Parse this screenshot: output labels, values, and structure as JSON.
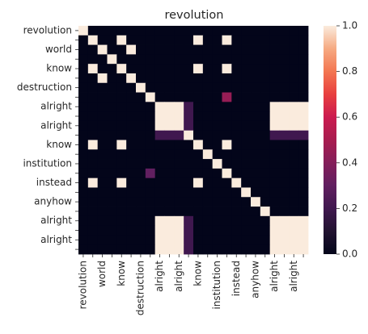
{
  "chart_data": {
    "type": "heatmap",
    "title": "revolution",
    "xlabel": "",
    "ylabel": "",
    "x_tick_labels": [
      "revolution",
      "",
      "world",
      "",
      "know",
      "",
      "destruction",
      "",
      "alright",
      "",
      "alright",
      "",
      "know",
      "",
      "institution",
      "",
      "instead",
      "",
      "anyhow",
      "",
      "alright",
      "",
      "alright",
      ""
    ],
    "y_tick_labels": [
      "revolution",
      "",
      "world",
      "",
      "know",
      "",
      "destruction",
      "",
      "alright",
      "",
      "alright",
      "",
      "know",
      "",
      "institution",
      "",
      "instead",
      "",
      "anyhow",
      "",
      "alright",
      "",
      "alright",
      ""
    ],
    "colorbar": {
      "min": 0.0,
      "max": 1.0,
      "ticks": [
        0.0,
        0.2,
        0.4,
        0.6,
        0.8,
        1.0
      ],
      "tick_labels": [
        "0.0",
        "0.2",
        "0.4",
        "0.6",
        "0.8",
        "1.0"
      ],
      "colormap": "rocket"
    },
    "grid": false,
    "values": [
      [
        1,
        0,
        0,
        0,
        0,
        0,
        0,
        0,
        0,
        0,
        0,
        0,
        0,
        0,
        0,
        0,
        0,
        0,
        0,
        0,
        0,
        0,
        0,
        0
      ],
      [
        0,
        1,
        0,
        0,
        1,
        0,
        0,
        0,
        0,
        0,
        0,
        0,
        1,
        0,
        0,
        1,
        0,
        0,
        0,
        0,
        0,
        0,
        0,
        0
      ],
      [
        0,
        0,
        1,
        0,
        0,
        1,
        0,
        0,
        0,
        0,
        0,
        0,
        0,
        0,
        0,
        0,
        0,
        0,
        0,
        0,
        0,
        0,
        0,
        0
      ],
      [
        0,
        0,
        0,
        1,
        0,
        0,
        0,
        0,
        0,
        0,
        0,
        0,
        0,
        0,
        0,
        0,
        0,
        0,
        0,
        0,
        0,
        0,
        0,
        0
      ],
      [
        0,
        1,
        0,
        0,
        1,
        0,
        0,
        0,
        0,
        0,
        0,
        0,
        1,
        0,
        0,
        1,
        0,
        0,
        0,
        0,
        0,
        0,
        0,
        0
      ],
      [
        0,
        0,
        1,
        0,
        0,
        1,
        0,
        0,
        0,
        0,
        0,
        0,
        0,
        0,
        0,
        0,
        0,
        0,
        0,
        0,
        0,
        0,
        0,
        0
      ],
      [
        0,
        0,
        0,
        0,
        0,
        0,
        1,
        0,
        0,
        0,
        0,
        0,
        0,
        0,
        0,
        0,
        0,
        0,
        0,
        0,
        0,
        0,
        0,
        0
      ],
      [
        0,
        0,
        0,
        0,
        0,
        0,
        0,
        1,
        0,
        0,
        0,
        0,
        0,
        0,
        0,
        0.45,
        0,
        0,
        0,
        0,
        0,
        0,
        0,
        0
      ],
      [
        0,
        0,
        0,
        0,
        0,
        0,
        0,
        0,
        1,
        1,
        1,
        0.2,
        0,
        0,
        0,
        0,
        0,
        0,
        0,
        0,
        1,
        1,
        1,
        1
      ],
      [
        0,
        0,
        0,
        0,
        0,
        0,
        0,
        0,
        1,
        1,
        1,
        0.2,
        0,
        0,
        0,
        0,
        0,
        0,
        0,
        0,
        1,
        1,
        1,
        1
      ],
      [
        0,
        0,
        0,
        0,
        0,
        0,
        0,
        0,
        1,
        1,
        1,
        0.2,
        0,
        0,
        0,
        0,
        0,
        0,
        0,
        0,
        1,
        1,
        1,
        1
      ],
      [
        0,
        0,
        0,
        0,
        0,
        0,
        0,
        0,
        0.2,
        0.2,
        0.2,
        1,
        0,
        0,
        0,
        0,
        0,
        0,
        0,
        0,
        0.2,
        0.2,
        0.2,
        0.2
      ],
      [
        0,
        1,
        0,
        0,
        1,
        0,
        0,
        0,
        0,
        0,
        0,
        0,
        1,
        0,
        0,
        1,
        0,
        0,
        0,
        0,
        0,
        0,
        0,
        0
      ],
      [
        0,
        0,
        0,
        0,
        0,
        0,
        0,
        0,
        0,
        0,
        0,
        0,
        0,
        1,
        0,
        0,
        0,
        0,
        0,
        0,
        0,
        0,
        0,
        0
      ],
      [
        0,
        0,
        0,
        0,
        0,
        0,
        0,
        0,
        0,
        0,
        0,
        0,
        0,
        0,
        1,
        0,
        0,
        0,
        0,
        0,
        0,
        0,
        0,
        0
      ],
      [
        0,
        0,
        0,
        0,
        0,
        0,
        0,
        0.3,
        0,
        0,
        0,
        0,
        0,
        0,
        0,
        1,
        0,
        0,
        0,
        0,
        0,
        0,
        0,
        0
      ],
      [
        0,
        1,
        0,
        0,
        1,
        0,
        0,
        0,
        0,
        0,
        0,
        0,
        1,
        0,
        0,
        0,
        1,
        0,
        0,
        0,
        0,
        0,
        0,
        0
      ],
      [
        0,
        0,
        0,
        0,
        0,
        0,
        0,
        0,
        0,
        0,
        0,
        0,
        0,
        0,
        0,
        0,
        0,
        1,
        0,
        0,
        0,
        0,
        0,
        0
      ],
      [
        0,
        0,
        0,
        0,
        0,
        0,
        0,
        0,
        0,
        0,
        0,
        0,
        0,
        0,
        0,
        0,
        0,
        0,
        1,
        0,
        0,
        0,
        0,
        0
      ],
      [
        0,
        0,
        0,
        0,
        0,
        0,
        0,
        0,
        0,
        0,
        0,
        0,
        0,
        0,
        0,
        0,
        0,
        0,
        0,
        1,
        0,
        0,
        0,
        0
      ],
      [
        0,
        0,
        0,
        0,
        0,
        0,
        0,
        0,
        1,
        1,
        1,
        0.2,
        0,
        0,
        0,
        0,
        0,
        0,
        0,
        0,
        1,
        1,
        1,
        1
      ],
      [
        0,
        0,
        0,
        0,
        0,
        0,
        0,
        0,
        1,
        1,
        1,
        0.2,
        0,
        0,
        0,
        0,
        0,
        0,
        0,
        0,
        1,
        1,
        1,
        1
      ],
      [
        0,
        0,
        0,
        0,
        0,
        0,
        0,
        0,
        1,
        1,
        1,
        0.2,
        0,
        0,
        0,
        0,
        0,
        0,
        0,
        0,
        1,
        1,
        1,
        1
      ],
      [
        0,
        0,
        0,
        0,
        0,
        0,
        0,
        0,
        1,
        1,
        1,
        0.2,
        0,
        0,
        0,
        0,
        0,
        0,
        0,
        0,
        1,
        1,
        1,
        1
      ]
    ]
  }
}
